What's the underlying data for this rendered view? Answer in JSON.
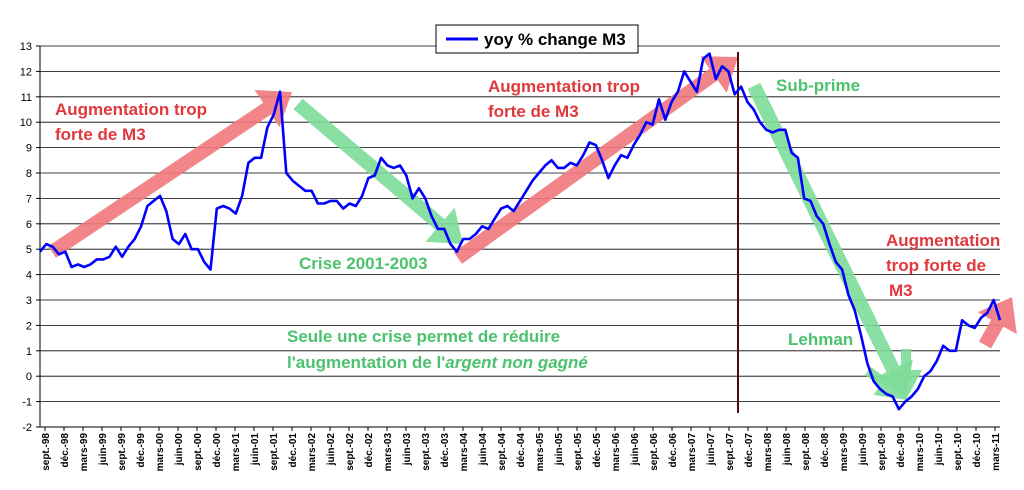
{
  "chart_data": {
    "type": "line",
    "ylim": [
      -2,
      13
    ],
    "y_ticks": [
      "-2",
      "-1",
      "0",
      "1",
      "2",
      "3",
      "4",
      "5",
      "6",
      "7",
      "8",
      "9",
      "10",
      "11",
      "12",
      "13"
    ],
    "grid": "horizontal",
    "legend_position": "top-center",
    "x_tick_labels": [
      "sept.-98",
      "déc.-98",
      "mars-99",
      "juin-99",
      "sept.-99",
      "déc.-99",
      "mars-00",
      "juin-00",
      "sept.-00",
      "déc.-00",
      "mars-01",
      "juin-01",
      "sept.-01",
      "déc.-01",
      "mars-02",
      "juin-02",
      "sept.-02",
      "déc.-02",
      "mars-03",
      "juin-03",
      "sept.-03",
      "déc.-03",
      "mars-04",
      "juin-04",
      "sept.-04",
      "déc.-04",
      "mars-05",
      "juin-05",
      "sept.-05",
      "déc.-05",
      "mars-06",
      "juin-06",
      "sept.-06",
      "déc.-06",
      "mars-07",
      "juin-07",
      "sept.-07",
      "déc.-07",
      "mars-08",
      "juin-08",
      "sept.-08",
      "déc.-08",
      "mars-09",
      "juin-09",
      "sept.-09",
      "déc.-09",
      "mars-10",
      "juin-10",
      "sept.-10",
      "déc.-10",
      "mars-11"
    ],
    "series": [
      {
        "name": "yoy % change M3",
        "color": "#0000ff",
        "values": [
          4.9,
          5.2,
          5.1,
          4.8,
          4.9,
          4.3,
          4.4,
          4.3,
          4.4,
          4.6,
          4.6,
          4.7,
          5.1,
          4.7,
          5.1,
          5.4,
          5.9,
          6.7,
          6.9,
          7.1,
          6.5,
          5.4,
          5.2,
          5.6,
          5.0,
          5.0,
          4.5,
          4.2,
          6.6,
          6.7,
          6.6,
          6.4,
          7.1,
          8.4,
          8.6,
          8.6,
          9.8,
          10.3,
          11.2,
          8.0,
          7.7,
          7.5,
          7.3,
          7.3,
          6.8,
          6.8,
          6.9,
          6.9,
          6.6,
          6.8,
          6.7,
          7.1,
          7.8,
          7.9,
          8.6,
          8.3,
          8.2,
          8.3,
          7.9,
          7.0,
          7.4,
          7.0,
          6.3,
          5.8,
          5.8,
          5.2,
          4.9,
          5.4,
          5.4,
          5.6,
          5.9,
          5.8,
          6.2,
          6.6,
          6.7,
          6.5,
          6.9,
          7.3,
          7.7,
          8.0,
          8.3,
          8.5,
          8.2,
          8.2,
          8.4,
          8.3,
          8.7,
          9.2,
          9.1,
          8.5,
          7.8,
          8.3,
          8.7,
          8.6,
          9.1,
          9.5,
          10.0,
          9.9,
          10.9,
          10.1,
          10.8,
          11.2,
          12.0,
          11.6,
          11.2,
          12.5,
          12.7,
          11.7,
          12.2,
          12.0,
          11.1,
          11.4,
          10.8,
          10.5,
          10.0,
          9.7,
          9.6,
          9.7,
          9.7,
          8.8,
          8.6,
          7.0,
          6.9,
          6.3,
          6.0,
          5.2,
          4.5,
          4.2,
          3.2,
          2.6,
          1.6,
          0.5,
          -0.2,
          -0.5,
          -0.7,
          -0.8,
          -1.3,
          -1.0,
          -0.8,
          -0.5,
          0.0,
          0.2,
          0.6,
          1.2,
          1.0,
          1.0,
          2.2,
          2.0,
          1.9,
          2.3,
          2.5,
          3.0,
          2.2
        ]
      }
    ],
    "annotations": {
      "red_1_line1": "Augmentation trop",
      "red_1_line2": "forte de M3",
      "red_2_line1": "Augmentation trop",
      "red_2_line2": "forte de M3",
      "red_3_line1": "Augmentation",
      "red_3_line2": "trop forte de",
      "red_3_line3": "M3",
      "green_crise": "Crise 2001-2003",
      "green_subprime": "Sub-prime",
      "green_lehman": "Lehman",
      "green_note_line1": "Seule une crise permet de réduire",
      "green_note_line2_pre": "l'augmentation de l'",
      "green_note_line2_italic": "argent non gagné"
    },
    "colors": {
      "red_arrow": "#f0787c",
      "green_arrow": "#7ddc98",
      "vertical_marker": "#4a0d0d"
    }
  }
}
